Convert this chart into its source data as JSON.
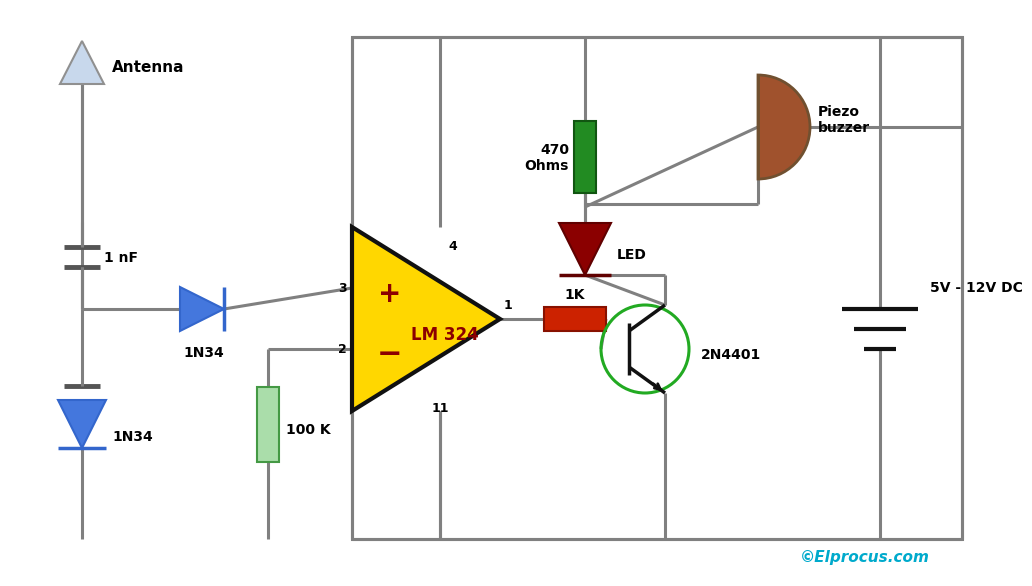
{
  "bg_color": "#ffffff",
  "wire_color": "#808080",
  "wire_lw": 2.2,
  "copyright": "©Elprocus.com",
  "antenna_label": "Antenna",
  "cap1_label": "1 nF",
  "diode1_label": "1N34",
  "diode2_label": "1N34",
  "opamp_label": "LM 324",
  "opamp_color": "#FFD700",
  "opamp_border": "#111111",
  "opamp_text_color": "#8B0000",
  "res100k_label": "100 K",
  "res100k_color": "#aaddaa",
  "res1k_label": "1K",
  "res1k_color": "#CC2200",
  "res470_label": "470\nOhms",
  "res470_color": "#228B22",
  "led_color": "#8B0000",
  "led_label": "LED",
  "transistor_label": "2N4401",
  "transistor_color": "#22AA22",
  "piezo_label": "Piezo\nbuzzer",
  "piezo_color": "#A0522D",
  "battery_label": "5V - 12V DC",
  "box_color": "#808080",
  "pin3": "3",
  "pin2": "2",
  "pin4": "4",
  "pin1": "1",
  "pin11": "11"
}
